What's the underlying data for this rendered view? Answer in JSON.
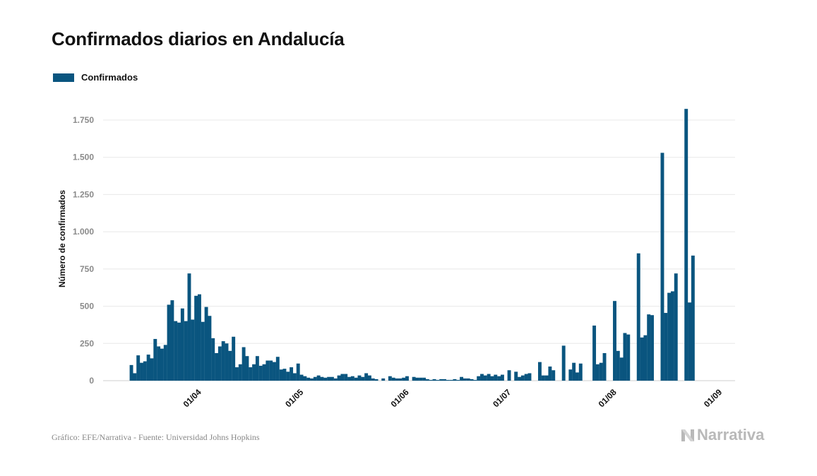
{
  "title": "Confirmados diarios en Andalucía",
  "footer": "Gráfico: EFE/Narrativa - Fuente: Universidad Johns Hopkins",
  "brand": {
    "name": "Narrativa",
    "icon": "narrativa-logo-icon"
  },
  "colors": {
    "bar": "#0a557f",
    "grid": "#e8e8e8",
    "tick": "#8a8a8a"
  },
  "chart_data": {
    "type": "bar",
    "title": "Confirmados diarios en Andalucía",
    "xlabel": "",
    "ylabel": "Número de confirmados",
    "ylim": [
      0,
      1800
    ],
    "yticks": [
      0,
      250,
      500,
      750,
      1000,
      1250,
      1500,
      1750
    ],
    "ytick_labels": [
      "0",
      "250",
      "500",
      "750",
      "1.000",
      "1.250",
      "1.500",
      "1.750"
    ],
    "xticks": [
      {
        "day": 19,
        "label": "01/04"
      },
      {
        "day": 49,
        "label": "01/05"
      },
      {
        "day": 80,
        "label": "01/06"
      },
      {
        "day": 110,
        "label": "01/07"
      },
      {
        "day": 141,
        "label": "01/08"
      },
      {
        "day": 172,
        "label": "01/09"
      }
    ],
    "grid": true,
    "legend_position": "top-left",
    "series": [
      {
        "name": "Confirmados",
        "x_start": "2020-03-13",
        "values": [
          105,
          50,
          170,
          120,
          130,
          175,
          150,
          280,
          230,
          215,
          240,
          510,
          540,
          400,
          390,
          485,
          400,
          720,
          410,
          570,
          580,
          395,
          495,
          435,
          285,
          185,
          230,
          265,
          250,
          200,
          295,
          90,
          110,
          225,
          165,
          90,
          110,
          165,
          100,
          110,
          135,
          135,
          125,
          160,
          75,
          80,
          60,
          90,
          50,
          115,
          40,
          30,
          20,
          15,
          25,
          35,
          25,
          20,
          25,
          25,
          15,
          35,
          45,
          45,
          25,
          30,
          20,
          35,
          25,
          50,
          35,
          15,
          10,
          0,
          15,
          0,
          30,
          20,
          15,
          15,
          20,
          30,
          0,
          25,
          20,
          20,
          20,
          10,
          5,
          10,
          5,
          10,
          10,
          5,
          5,
          10,
          5,
          25,
          15,
          15,
          10,
          5,
          30,
          45,
          35,
          45,
          30,
          40,
          30,
          40,
          0,
          70,
          0,
          60,
          25,
          35,
          45,
          50,
          0,
          0,
          125,
          35,
          35,
          95,
          70,
          0,
          0,
          235,
          0,
          75,
          120,
          55,
          115,
          0,
          0,
          0,
          370,
          110,
          120,
          185,
          0,
          0,
          535,
          200,
          155,
          320,
          310,
          0,
          0,
          855,
          290,
          305,
          445,
          440,
          0,
          0,
          1530,
          455,
          590,
          600,
          720,
          0,
          0,
          1825,
          525,
          840
        ]
      }
    ]
  }
}
